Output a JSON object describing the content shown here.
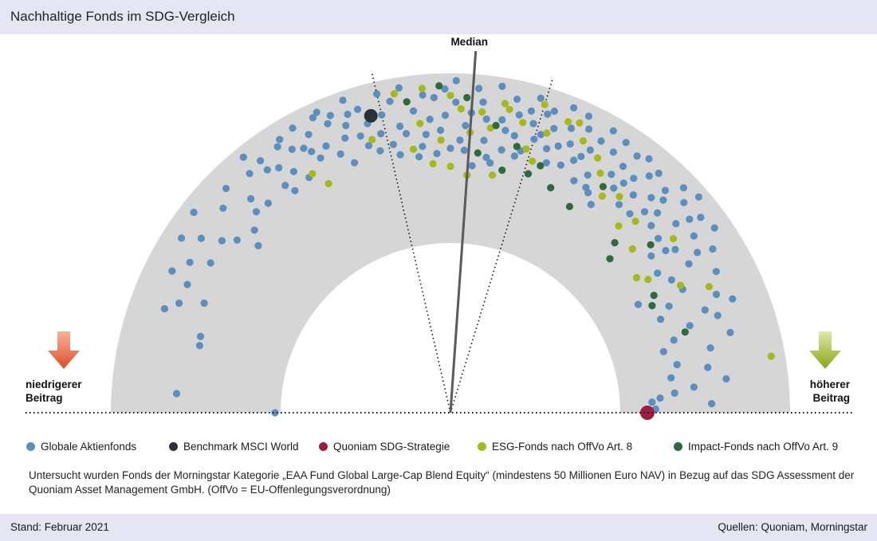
{
  "title": "Nachhaltige Fonds im SDG-Vergleich",
  "median_label": "Median",
  "left_label": [
    "niedrigerer",
    "Beitrag"
  ],
  "right_label": [
    "höherer",
    "Beitrag"
  ],
  "legend": [
    {
      "label": "Globale Aktienfonds",
      "color": "#5b8fc0"
    },
    {
      "label": "Benchmark MSCI World",
      "color": "#2c3038"
    },
    {
      "label": "Quoniam SDG-Strategie",
      "color": "#9b1d3f"
    },
    {
      "label": "ESG-Fonds nach OffVo Art. 8",
      "color": "#a6b81c"
    },
    {
      "label": "Impact-Fonds nach OffVo Art. 9",
      "color": "#2d6b3d"
    }
  ],
  "note": "Untersucht wurden Fonds der Morningstar Kategorie „EAA Fund Global Large-Cap Blend Equity“ (mindestens 50 Millionen Euro NAV) in Bezug auf das SDG Assessment der Quoniam Asset Management GmbH. (OffVo = EU-Offenlegungsverordnung)",
  "stand": "Stand: Februar 2021",
  "sources": "Quellen: Quoniam, Morningstar",
  "chart_data": {
    "type": "scatter",
    "coordinate_system": "semicircle (angle = SDG contribution, left low to right high; radius = jitter)",
    "arrow_colors": {
      "low": "#d94f2a",
      "high": "#a6b81c"
    },
    "median_angle_deg": 86,
    "quartile_angles_deg": [
      73,
      103
    ],
    "series": [
      {
        "name": "Benchmark MSCI World",
        "points": [
          [
            105,
            0.82
          ]
        ]
      },
      {
        "name": "Quoniam SDG-Strategie",
        "points": [
          [
            0,
            0.15
          ]
        ]
      },
      {
        "name": "ESG-Fonds nach OffVo Art. 8",
        "points": [
          [
            100,
            0.92
          ],
          [
            95,
            0.93
          ],
          [
            90,
            0.88
          ],
          [
            88,
            0.8
          ],
          [
            84,
            0.79
          ],
          [
            80,
            0.86
          ],
          [
            79,
            0.83
          ],
          [
            76,
            0.77
          ],
          [
            73,
            0.91
          ],
          [
            71,
            0.75
          ],
          [
            68,
            0.86
          ],
          [
            66,
            0.88
          ],
          [
            64,
            0.79
          ],
          [
            74,
            0.62
          ],
          [
            82,
            0.7
          ],
          [
            86,
            0.66
          ],
          [
            92,
            0.61
          ],
          [
            96,
            0.72
          ],
          [
            98,
            0.57
          ],
          [
            90,
            0.45
          ],
          [
            60,
            0.74
          ],
          [
            58,
            0.67
          ],
          [
            55,
            0.56
          ],
          [
            52,
            0.62
          ],
          [
            48,
            0.48
          ],
          [
            46,
            0.57
          ],
          [
            42,
            0.44
          ],
          [
            38,
            0.67
          ],
          [
            36,
            0.35
          ],
          [
            34,
            0.4
          ],
          [
            29,
            0.55
          ],
          [
            26,
            0.7
          ],
          [
            10,
            0.93
          ],
          [
            120,
            0.63
          ],
          [
            118,
            0.53
          ],
          [
            106,
            0.68
          ],
          [
            94,
            0.47
          ],
          [
            86,
            0.4
          ],
          [
            80,
            0.42
          ],
          [
            72,
            0.56
          ]
        ]
      },
      {
        "name": "Impact-Fonds nach OffVo Art. 9",
        "points": [
          [
            92,
            0.94
          ],
          [
            98,
            0.86
          ],
          [
            87,
            0.87
          ],
          [
            81,
            0.72
          ],
          [
            76,
            0.62
          ],
          [
            70,
            0.55
          ],
          [
            66,
            0.45
          ],
          [
            60,
            0.4
          ],
          [
            56,
            0.61
          ],
          [
            46,
            0.39
          ],
          [
            44,
            0.3
          ],
          [
            40,
            0.54
          ],
          [
            30,
            0.38
          ],
          [
            28,
            0.34
          ],
          [
            19,
            0.46
          ],
          [
            78,
            0.46
          ],
          [
            84,
            0.54
          ],
          [
            72,
            0.48
          ]
        ]
      },
      {
        "name": "Globale Aktienfonds",
        "points": [
          [
            180,
            0.02
          ],
          [
            176,
            0.62
          ],
          [
            165,
            0.53
          ],
          [
            163,
            0.54
          ],
          [
            158,
            0.73
          ],
          [
            154,
            0.73
          ],
          [
            153,
            0.85
          ],
          [
            150,
            0.78
          ],
          [
            147,
            0.9
          ],
          [
            145,
            0.8
          ],
          [
            143,
            0.69
          ],
          [
            141,
            0.62
          ],
          [
            139,
            0.5
          ],
          [
            137,
            0.58
          ],
          [
            135,
            0.88
          ],
          [
            133,
            0.73
          ],
          [
            131,
            0.64
          ],
          [
            129,
            0.95
          ],
          [
            127,
            0.87
          ],
          [
            125,
            0.77
          ],
          [
            123,
            0.7
          ],
          [
            121,
            0.82
          ],
          [
            119,
            0.93
          ],
          [
            117,
            0.85
          ],
          [
            115,
            0.74
          ],
          [
            113,
            0.66
          ],
          [
            111,
            0.58
          ],
          [
            109,
            0.96
          ],
          [
            107,
            0.88
          ],
          [
            106,
            0.78
          ],
          [
            104,
            0.7
          ],
          [
            102,
            0.62
          ],
          [
            101,
            0.55
          ],
          [
            99,
            0.95
          ],
          [
            97,
            0.8
          ],
          [
            95,
            0.65
          ],
          [
            93,
            0.87
          ],
          [
            91,
            0.76
          ],
          [
            89,
            0.97
          ],
          [
            87,
            0.7
          ],
          [
            85,
            0.93
          ],
          [
            83,
            0.62
          ],
          [
            81,
            0.96
          ],
          [
            79,
            0.58
          ],
          [
            77,
            0.68
          ],
          [
            75,
            0.85
          ],
          [
            74,
            0.94
          ],
          [
            72,
            0.73
          ],
          [
            70,
            0.66
          ],
          [
            68,
            0.95
          ],
          [
            66,
            0.6
          ],
          [
            64,
            0.87
          ],
          [
            62,
            0.76
          ],
          [
            60,
            0.93
          ],
          [
            58,
            0.82
          ],
          [
            56,
            0.7
          ],
          [
            54,
            0.88
          ],
          [
            52,
            0.76
          ],
          [
            50,
            0.68
          ],
          [
            48,
            0.58
          ],
          [
            46,
            0.83
          ],
          [
            44,
            0.7
          ],
          [
            42,
            0.86
          ],
          [
            40,
            0.6
          ],
          [
            38,
            0.5
          ],
          [
            36,
            0.78
          ],
          [
            34,
            0.47
          ],
          [
            32,
            0.66
          ],
          [
            30,
            0.27
          ],
          [
            28,
            0.55
          ],
          [
            26,
            0.43
          ],
          [
            24,
            0.72
          ],
          [
            22,
            0.62
          ],
          [
            20,
            0.5
          ],
          [
            18,
            0.38
          ],
          [
            16,
            0.3
          ],
          [
            14,
            0.58
          ],
          [
            12,
            0.36
          ],
          [
            9,
            0.31
          ],
          [
            7,
            0.64
          ],
          [
            5,
            0.32
          ],
          [
            3,
            0.18
          ],
          [
            2,
            0.54
          ],
          [
            1,
            0.2
          ],
          [
            112,
            0.9
          ],
          [
            108,
            0.72
          ],
          [
            103,
            0.81
          ],
          [
            100,
            0.72
          ],
          [
            96,
            0.58
          ],
          [
            94,
            0.74
          ],
          [
            92,
            0.67
          ],
          [
            90,
            0.56
          ],
          [
            88,
            0.61
          ],
          [
            86,
            0.78
          ],
          [
            84,
            0.85
          ],
          [
            82,
            0.52
          ],
          [
            80,
            0.76
          ],
          [
            78,
            0.9
          ],
          [
            76,
            0.56
          ],
          [
            74,
            0.78
          ],
          [
            72,
            0.86
          ],
          [
            70,
            0.79
          ],
          [
            68,
            0.7
          ],
          [
            66,
            0.74
          ],
          [
            64,
            0.66
          ],
          [
            62,
            0.55
          ],
          [
            60,
            0.62
          ],
          [
            58,
            0.53
          ],
          [
            56,
            0.48
          ],
          [
            54,
            0.64
          ],
          [
            52,
            0.91
          ],
          [
            50,
            0.83
          ],
          [
            46,
            0.65
          ],
          [
            44,
            0.92
          ],
          [
            40,
            0.74
          ],
          [
            38,
            0.88
          ],
          [
            36,
            0.64
          ],
          [
            32,
            0.83
          ],
          [
            28,
            0.78
          ],
          [
            24,
            0.35
          ],
          [
            22,
            0.8
          ],
          [
            20,
            0.68
          ],
          [
            110,
            0.81
          ],
          [
            114,
            0.95
          ],
          [
            118,
            0.75
          ],
          [
            122,
            0.91
          ],
          [
            126,
            0.66
          ],
          [
            130,
            0.85
          ],
          [
            134,
            0.65
          ],
          [
            138,
            0.81
          ],
          [
            142,
            0.93
          ],
          [
            148,
            0.67
          ],
          [
            156,
            0.59
          ],
          [
            160,
            0.8
          ],
          [
            97,
            0.52
          ],
          [
            93,
            0.53
          ],
          [
            89,
            0.84
          ],
          [
            85,
            0.46
          ],
          [
            83,
            0.75
          ],
          [
            81,
            0.49
          ],
          [
            79,
            0.7
          ],
          [
            77,
            0.81
          ],
          [
            75,
            0.6
          ],
          [
            73,
            0.69
          ],
          [
            71,
            0.89
          ],
          [
            69,
            0.58
          ],
          [
            67,
            0.83
          ],
          [
            65,
            0.94
          ],
          [
            63,
            0.7
          ],
          [
            61,
            0.84
          ],
          [
            59,
            0.55
          ],
          [
            57,
            0.91
          ],
          [
            55,
            0.78
          ],
          [
            53,
            0.7
          ],
          [
            51,
            0.58
          ],
          [
            49,
            0.88
          ],
          [
            47,
            0.74
          ],
          [
            45,
            0.78
          ],
          [
            43,
            0.62
          ],
          [
            41,
            0.95
          ],
          [
            39,
            0.82
          ],
          [
            37,
            0.59
          ],
          [
            35,
            0.91
          ],
          [
            33,
            0.74
          ],
          [
            31,
            0.52
          ],
          [
            105,
            0.6
          ],
          [
            107,
            0.65
          ],
          [
            109,
            0.87
          ],
          [
            111,
            0.74
          ],
          [
            113,
            0.86
          ],
          [
            115,
            0.93
          ],
          [
            117,
            0.69
          ],
          [
            119,
            0.79
          ],
          [
            121,
            0.62
          ],
          [
            123,
            0.88
          ],
          [
            125,
            0.6
          ],
          [
            127,
            0.8
          ],
          [
            95,
            0.89
          ],
          [
            91,
            0.92
          ],
          [
            87,
            0.55
          ],
          [
            99,
            0.67
          ],
          [
            101,
            0.88
          ],
          [
            103,
            0.94
          ],
          [
            16,
            0.72
          ],
          [
            10,
            0.54
          ],
          [
            6,
            0.44
          ],
          [
            4,
            0.23
          ]
        ]
      }
    ]
  }
}
